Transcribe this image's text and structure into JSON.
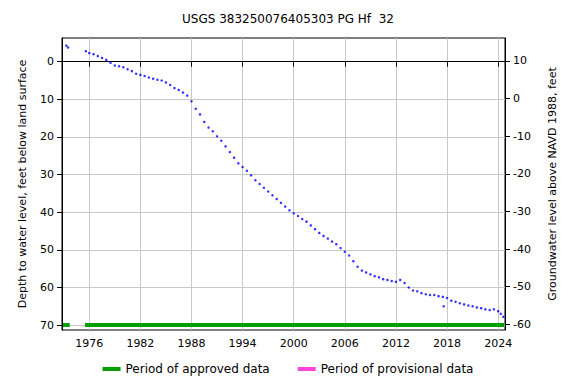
{
  "chart_data": {
    "type": "scatter",
    "title": "USGS 383250076405303 PG Hf  32",
    "y_label": "Depth to water level, feet below land surface",
    "y2_label": "Groundwater level above NAVD 1988, feet",
    "x": [
      1973.3,
      1973.5,
      1975.6,
      1976.0,
      1976.5,
      1977.0,
      1977.5,
      1978.0,
      1978.5,
      1979.0,
      1979.5,
      1980.0,
      1980.5,
      1981.0,
      1981.5,
      1982.0,
      1982.5,
      1983.0,
      1983.5,
      1984.0,
      1984.5,
      1985.0,
      1985.5,
      1986.0,
      1986.5,
      1987.0,
      1987.5,
      1988.0,
      1988.5,
      1989.0,
      1989.5,
      1990.0,
      1990.5,
      1991.0,
      1991.5,
      1992.0,
      1992.5,
      1993.0,
      1993.5,
      1994.0,
      1994.5,
      1995.0,
      1995.5,
      1996.0,
      1996.5,
      1997.0,
      1997.5,
      1998.0,
      1998.5,
      1999.0,
      1999.5,
      2000.0,
      2000.5,
      2001.0,
      2001.5,
      2002.0,
      2002.5,
      2003.0,
      2003.5,
      2004.0,
      2004.5,
      2005.0,
      2005.5,
      2006.0,
      2006.5,
      2007.0,
      2007.5,
      2008.0,
      2008.5,
      2009.0,
      2009.5,
      2010.0,
      2010.5,
      2011.0,
      2011.5,
      2012.0,
      2012.5,
      2013.0,
      2013.5,
      2014.0,
      2014.5,
      2015.0,
      2015.5,
      2016.0,
      2016.5,
      2017.0,
      2017.5,
      2017.6,
      2018.0,
      2018.5,
      2019.0,
      2019.5,
      2020.0,
      2020.5,
      2021.0,
      2021.5,
      2022.0,
      2022.5,
      2023.0,
      2023.5,
      2024.0,
      2024.3,
      2024.6
    ],
    "series": [
      {
        "color": "#0000ff",
        "marker": "circle",
        "values": [
          -4.3,
          -3.8,
          -2.8,
          -2.3,
          -2.0,
          -1.5,
          -1.0,
          -0.5,
          0.3,
          1.0,
          1.2,
          1.5,
          2.0,
          2.5,
          3.2,
          3.5,
          3.8,
          4.2,
          4.5,
          4.8,
          5.0,
          5.5,
          6.2,
          7.0,
          7.5,
          8.2,
          9.0,
          10.5,
          12.5,
          14.0,
          16.0,
          17.5,
          18.5,
          19.8,
          21.0,
          22.5,
          24.0,
          25.5,
          27.0,
          28.0,
          29.0,
          30.2,
          31.5,
          32.5,
          33.5,
          34.5,
          35.5,
          36.5,
          37.5,
          38.5,
          39.5,
          40.3,
          41.0,
          41.8,
          42.5,
          43.5,
          44.5,
          45.5,
          46.3,
          47.0,
          47.8,
          48.5,
          49.5,
          50.5,
          51.5,
          53.0,
          54.5,
          55.5,
          56.0,
          56.5,
          57.0,
          57.3,
          57.8,
          58.0,
          58.3,
          58.5,
          58.0,
          58.8,
          60.0,
          60.8,
          61.0,
          61.5,
          61.8,
          62.0,
          62.0,
          62.3,
          62.5,
          65.0,
          62.8,
          63.5,
          63.8,
          64.2,
          64.5,
          64.8,
          65.0,
          65.3,
          65.5,
          65.8,
          66.0,
          65.8,
          66.3,
          67.0,
          67.8
        ]
      }
    ],
    "periods": [
      {
        "name": "Period of approved data",
        "color": "#00a000",
        "ranges": [
          [
            1972.9,
            1973.7
          ],
          [
            1975.5,
            2024.7
          ]
        ]
      },
      {
        "name": "Period of provisional data",
        "color": "#ff44dd",
        "ranges": []
      }
    ],
    "xlim": [
      1972.8,
      2024.8
    ],
    "xticks": [
      1976,
      1982,
      1988,
      1994,
      2000,
      2006,
      2012,
      2018,
      2024
    ],
    "ylim": [
      -6.3,
      71.3
    ],
    "yticks": [
      0,
      10,
      20,
      30,
      40,
      50,
      60,
      70
    ],
    "y2lim": [
      -61.5,
      16.1
    ],
    "y2ticks": [
      -60,
      -50,
      -40,
      -30,
      -20,
      -10,
      0,
      10
    ],
    "grid": true,
    "legend": "bottom"
  }
}
